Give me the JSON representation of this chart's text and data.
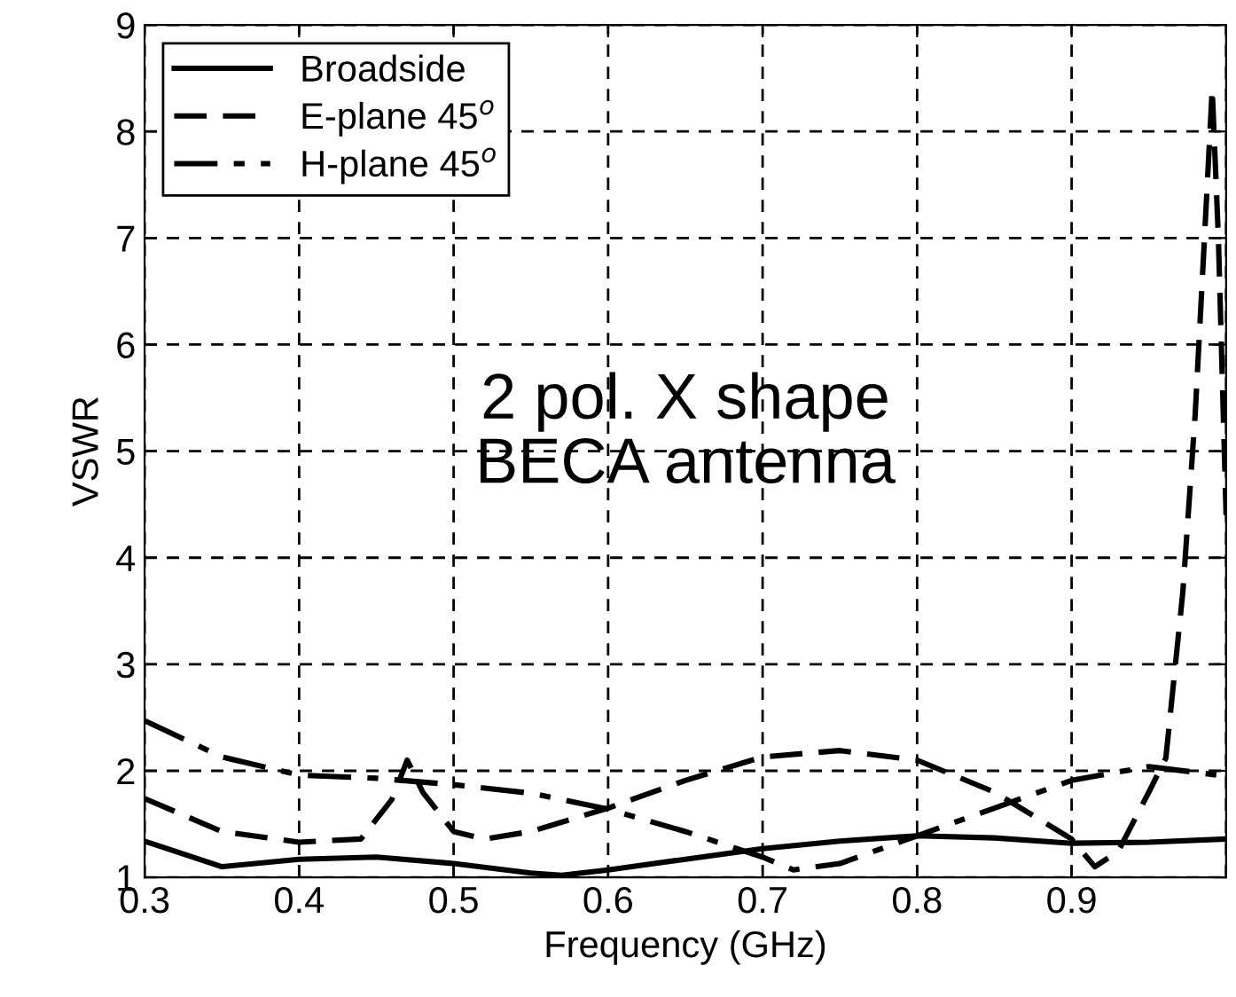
{
  "chart_data": {
    "type": "line",
    "xlabel": "Frequency (GHz)",
    "ylabel": "VSWR",
    "xlim": [
      0.3,
      1.0
    ],
    "ylim": [
      1,
      9
    ],
    "xticks": [
      0.3,
      0.4,
      0.5,
      0.6,
      0.7,
      0.8,
      0.9,
      {
        "value": 1.0,
        "label": null
      }
    ],
    "yticks": [
      1,
      2,
      3,
      4,
      5,
      6,
      7,
      8,
      9
    ],
    "grid": true,
    "legend": "top left",
    "marker": "none",
    "annotations": [
      "2 pol. X shape\nBECA antenna"
    ],
    "series": [
      {
        "name": "Broadside",
        "color": "#000000",
        "line_style": "solid",
        "x": [
          0.3,
          0.35,
          0.4,
          0.45,
          0.5,
          0.55,
          0.57,
          0.6,
          0.65,
          0.7,
          0.75,
          0.8,
          0.85,
          0.9,
          0.95,
          1.0
        ],
        "values": [
          1.34,
          1.1,
          1.17,
          1.19,
          1.13,
          1.04,
          1.02,
          1.07,
          1.17,
          1.27,
          1.34,
          1.39,
          1.37,
          1.32,
          1.33,
          1.36
        ]
      },
      {
        "name": "E-plane 45$^{o}$",
        "color": "#000000",
        "line_style": "dashed",
        "x": [
          0.3,
          0.35,
          0.4,
          0.44,
          0.46,
          0.47,
          0.48,
          0.5,
          0.52,
          0.55,
          0.6,
          0.65,
          0.7,
          0.75,
          0.8,
          0.85,
          0.9,
          0.915,
          0.93,
          0.95,
          0.961,
          0.972,
          0.98,
          0.986,
          0.991,
          0.995,
          1.0
        ],
        "values": [
          1.74,
          1.43,
          1.33,
          1.36,
          1.73,
          2.1,
          1.8,
          1.43,
          1.36,
          1.43,
          1.65,
          1.91,
          2.13,
          2.19,
          2.1,
          1.8,
          1.36,
          1.1,
          1.24,
          1.8,
          2.12,
          3.68,
          5.35,
          7.0,
          8.4,
          7.0,
          4.4
        ]
      },
      {
        "name": "H-plane 45$^{o}$",
        "color": "#000000",
        "line_style": "dashdot",
        "x": [
          0.3,
          0.35,
          0.4,
          0.45,
          0.5,
          0.55,
          0.6,
          0.65,
          0.7,
          0.72,
          0.75,
          0.8,
          0.85,
          0.9,
          0.95,
          1.0
        ],
        "values": [
          2.47,
          2.13,
          1.96,
          1.93,
          1.87,
          1.79,
          1.64,
          1.43,
          1.19,
          1.07,
          1.13,
          1.39,
          1.65,
          1.91,
          2.04,
          1.95
        ]
      }
    ]
  }
}
